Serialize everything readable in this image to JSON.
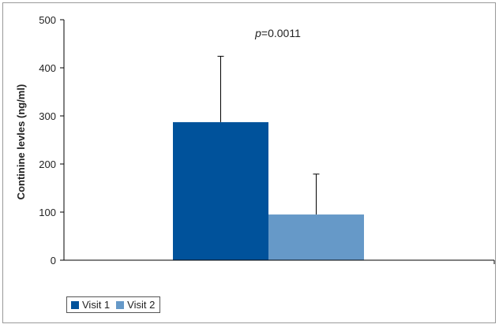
{
  "chart_data": {
    "type": "bar",
    "categories": [
      ""
    ],
    "series": [
      {
        "name": "Visit 1",
        "values": [
          287
        ],
        "error": [
          137
        ],
        "color": "#00529b"
      },
      {
        "name": "Visit 2",
        "values": [
          95
        ],
        "error": [
          84
        ],
        "color": "#6699c8"
      }
    ],
    "title": "",
    "xlabel": "",
    "ylabel": "Continine levles (ng/ml)",
    "ylim": [
      0,
      500
    ],
    "yticks": [
      0,
      100,
      200,
      300,
      400,
      500
    ],
    "annotation": {
      "p_symbol": "p",
      "p_text": "=0.0011"
    },
    "grid": false,
    "legend_position": "bottom-left"
  }
}
